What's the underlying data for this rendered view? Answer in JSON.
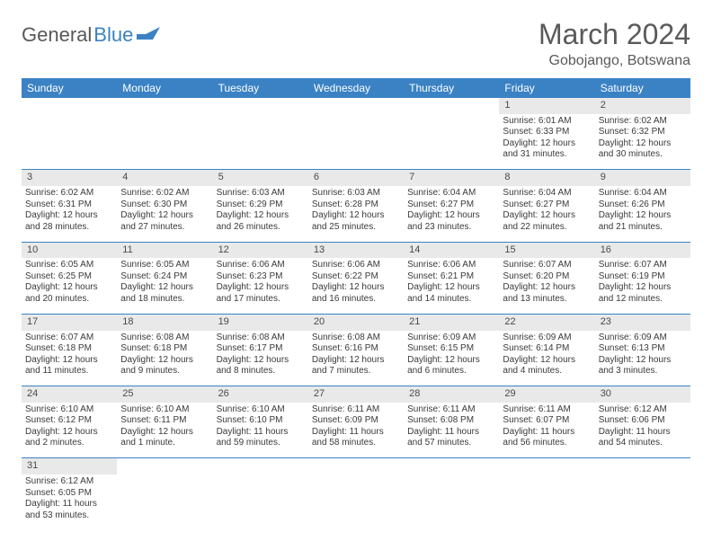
{
  "logo": {
    "general": "General",
    "blue": "Blue"
  },
  "title": "March 2024",
  "location": "Gobojango, Botswana",
  "colors": {
    "header_bg": "#3b82c4",
    "header_text": "#ffffff",
    "daynum_bg": "#e9e9e9",
    "cell_text": "#3a3a3a",
    "title_text": "#5a5a5a",
    "row_border": "#3b82c4"
  },
  "day_headers": [
    "Sunday",
    "Monday",
    "Tuesday",
    "Wednesday",
    "Thursday",
    "Friday",
    "Saturday"
  ],
  "weeks": [
    [
      null,
      null,
      null,
      null,
      null,
      {
        "n": "1",
        "sunrise": "Sunrise: 6:01 AM",
        "sunset": "Sunset: 6:33 PM",
        "day1": "Daylight: 12 hours",
        "day2": "and 31 minutes."
      },
      {
        "n": "2",
        "sunrise": "Sunrise: 6:02 AM",
        "sunset": "Sunset: 6:32 PM",
        "day1": "Daylight: 12 hours",
        "day2": "and 30 minutes."
      }
    ],
    [
      {
        "n": "3",
        "sunrise": "Sunrise: 6:02 AM",
        "sunset": "Sunset: 6:31 PM",
        "day1": "Daylight: 12 hours",
        "day2": "and 28 minutes."
      },
      {
        "n": "4",
        "sunrise": "Sunrise: 6:02 AM",
        "sunset": "Sunset: 6:30 PM",
        "day1": "Daylight: 12 hours",
        "day2": "and 27 minutes."
      },
      {
        "n": "5",
        "sunrise": "Sunrise: 6:03 AM",
        "sunset": "Sunset: 6:29 PM",
        "day1": "Daylight: 12 hours",
        "day2": "and 26 minutes."
      },
      {
        "n": "6",
        "sunrise": "Sunrise: 6:03 AM",
        "sunset": "Sunset: 6:28 PM",
        "day1": "Daylight: 12 hours",
        "day2": "and 25 minutes."
      },
      {
        "n": "7",
        "sunrise": "Sunrise: 6:04 AM",
        "sunset": "Sunset: 6:27 PM",
        "day1": "Daylight: 12 hours",
        "day2": "and 23 minutes."
      },
      {
        "n": "8",
        "sunrise": "Sunrise: 6:04 AM",
        "sunset": "Sunset: 6:27 PM",
        "day1": "Daylight: 12 hours",
        "day2": "and 22 minutes."
      },
      {
        "n": "9",
        "sunrise": "Sunrise: 6:04 AM",
        "sunset": "Sunset: 6:26 PM",
        "day1": "Daylight: 12 hours",
        "day2": "and 21 minutes."
      }
    ],
    [
      {
        "n": "10",
        "sunrise": "Sunrise: 6:05 AM",
        "sunset": "Sunset: 6:25 PM",
        "day1": "Daylight: 12 hours",
        "day2": "and 20 minutes."
      },
      {
        "n": "11",
        "sunrise": "Sunrise: 6:05 AM",
        "sunset": "Sunset: 6:24 PM",
        "day1": "Daylight: 12 hours",
        "day2": "and 18 minutes."
      },
      {
        "n": "12",
        "sunrise": "Sunrise: 6:06 AM",
        "sunset": "Sunset: 6:23 PM",
        "day1": "Daylight: 12 hours",
        "day2": "and 17 minutes."
      },
      {
        "n": "13",
        "sunrise": "Sunrise: 6:06 AM",
        "sunset": "Sunset: 6:22 PM",
        "day1": "Daylight: 12 hours",
        "day2": "and 16 minutes."
      },
      {
        "n": "14",
        "sunrise": "Sunrise: 6:06 AM",
        "sunset": "Sunset: 6:21 PM",
        "day1": "Daylight: 12 hours",
        "day2": "and 14 minutes."
      },
      {
        "n": "15",
        "sunrise": "Sunrise: 6:07 AM",
        "sunset": "Sunset: 6:20 PM",
        "day1": "Daylight: 12 hours",
        "day2": "and 13 minutes."
      },
      {
        "n": "16",
        "sunrise": "Sunrise: 6:07 AM",
        "sunset": "Sunset: 6:19 PM",
        "day1": "Daylight: 12 hours",
        "day2": "and 12 minutes."
      }
    ],
    [
      {
        "n": "17",
        "sunrise": "Sunrise: 6:07 AM",
        "sunset": "Sunset: 6:18 PM",
        "day1": "Daylight: 12 hours",
        "day2": "and 11 minutes."
      },
      {
        "n": "18",
        "sunrise": "Sunrise: 6:08 AM",
        "sunset": "Sunset: 6:18 PM",
        "day1": "Daylight: 12 hours",
        "day2": "and 9 minutes."
      },
      {
        "n": "19",
        "sunrise": "Sunrise: 6:08 AM",
        "sunset": "Sunset: 6:17 PM",
        "day1": "Daylight: 12 hours",
        "day2": "and 8 minutes."
      },
      {
        "n": "20",
        "sunrise": "Sunrise: 6:08 AM",
        "sunset": "Sunset: 6:16 PM",
        "day1": "Daylight: 12 hours",
        "day2": "and 7 minutes."
      },
      {
        "n": "21",
        "sunrise": "Sunrise: 6:09 AM",
        "sunset": "Sunset: 6:15 PM",
        "day1": "Daylight: 12 hours",
        "day2": "and 6 minutes."
      },
      {
        "n": "22",
        "sunrise": "Sunrise: 6:09 AM",
        "sunset": "Sunset: 6:14 PM",
        "day1": "Daylight: 12 hours",
        "day2": "and 4 minutes."
      },
      {
        "n": "23",
        "sunrise": "Sunrise: 6:09 AM",
        "sunset": "Sunset: 6:13 PM",
        "day1": "Daylight: 12 hours",
        "day2": "and 3 minutes."
      }
    ],
    [
      {
        "n": "24",
        "sunrise": "Sunrise: 6:10 AM",
        "sunset": "Sunset: 6:12 PM",
        "day1": "Daylight: 12 hours",
        "day2": "and 2 minutes."
      },
      {
        "n": "25",
        "sunrise": "Sunrise: 6:10 AM",
        "sunset": "Sunset: 6:11 PM",
        "day1": "Daylight: 12 hours",
        "day2": "and 1 minute."
      },
      {
        "n": "26",
        "sunrise": "Sunrise: 6:10 AM",
        "sunset": "Sunset: 6:10 PM",
        "day1": "Daylight: 11 hours",
        "day2": "and 59 minutes."
      },
      {
        "n": "27",
        "sunrise": "Sunrise: 6:11 AM",
        "sunset": "Sunset: 6:09 PM",
        "day1": "Daylight: 11 hours",
        "day2": "and 58 minutes."
      },
      {
        "n": "28",
        "sunrise": "Sunrise: 6:11 AM",
        "sunset": "Sunset: 6:08 PM",
        "day1": "Daylight: 11 hours",
        "day2": "and 57 minutes."
      },
      {
        "n": "29",
        "sunrise": "Sunrise: 6:11 AM",
        "sunset": "Sunset: 6:07 PM",
        "day1": "Daylight: 11 hours",
        "day2": "and 56 minutes."
      },
      {
        "n": "30",
        "sunrise": "Sunrise: 6:12 AM",
        "sunset": "Sunset: 6:06 PM",
        "day1": "Daylight: 11 hours",
        "day2": "and 54 minutes."
      }
    ],
    [
      {
        "n": "31",
        "sunrise": "Sunrise: 6:12 AM",
        "sunset": "Sunset: 6:05 PM",
        "day1": "Daylight: 11 hours",
        "day2": "and 53 minutes."
      },
      null,
      null,
      null,
      null,
      null,
      null
    ]
  ]
}
